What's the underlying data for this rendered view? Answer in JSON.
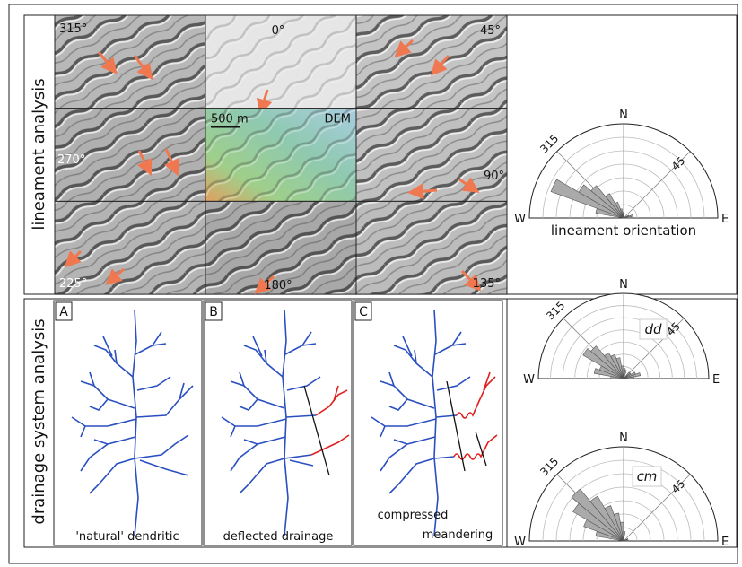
{
  "top_panel": {
    "side_label": "lineament analysis",
    "tiles": [
      "315°",
      "0°",
      "45°",
      "270°",
      "90°",
      "225°",
      "180°",
      "135°"
    ],
    "scale_bar": "500 m",
    "dem_label": "DEM",
    "rose": {
      "north": "N",
      "west": "W",
      "east": "E",
      "tick_315": "315",
      "tick_45": "45",
      "caption": "lineament orientation"
    }
  },
  "bottom_panel": {
    "side_label": "drainage system analysis",
    "panels": [
      {
        "letter": "A",
        "caption": "'natural' dendritic"
      },
      {
        "letter": "B",
        "caption": "deflected drainage"
      },
      {
        "letter": "C",
        "caption_lines": [
          "compressed",
          "meandering"
        ]
      }
    ],
    "roses": [
      {
        "label": "dd",
        "north": "N",
        "west": "W",
        "east": "E",
        "tick_315": "315",
        "tick_45": "45"
      },
      {
        "label": "cm",
        "north": "N",
        "west": "W",
        "east": "E",
        "tick_315": "315",
        "tick_45": "45"
      }
    ]
  }
}
